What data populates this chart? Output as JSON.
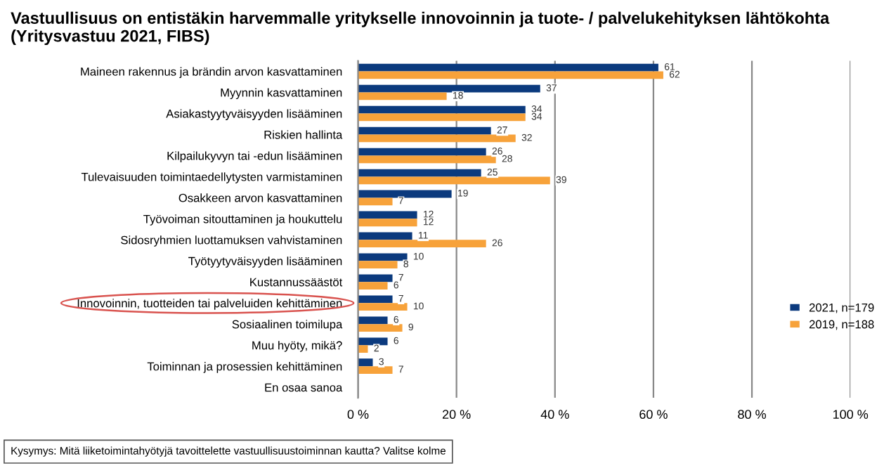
{
  "chart_data": {
    "type": "bar",
    "orientation": "horizontal",
    "title": "Vastuullisuus on entistäkin harvemmalle yritykselle innovoinnin ja tuote- / palvelukehityksen lähtökohta (Yritysvastuu 2021, FIBS)",
    "categories": [
      "Maineen rakennus ja brändin arvon kasvattaminen",
      "Myynnin kasvattaminen",
      "Asiakastyytyväisyyden lisääminen",
      "Riskien hallinta",
      "Kilpailukyvyn tai -edun lisääminen",
      "Tulevaisuuden toimintaedellytysten varmistaminen",
      "Osakkeen arvon kasvattaminen",
      "Työvoiman sitouttaminen ja houkuttelu",
      "Sidosryhmien luottamuksen vahvistaminen",
      "Työtyytyväisyyden lisääminen",
      "Kustannussäästöt",
      "Innovoinnin, tuotteiden tai palveluiden kehittäminen",
      "Sosiaalinen toimilupa",
      "Muu hyöty, mikä?",
      "Toiminnan ja prosessien kehittäminen",
      "En osaa sanoa"
    ],
    "series": [
      {
        "name": "2021, n=179",
        "color": "#0b3a7e",
        "values": [
          61,
          37,
          34,
          27,
          26,
          25,
          19,
          12,
          11,
          10,
          7,
          7,
          6,
          6,
          3,
          null
        ]
      },
      {
        "name": "2019, n=188",
        "color": "#f7a23a",
        "values": [
          62,
          18,
          34,
          32,
          28,
          39,
          7,
          12,
          26,
          8,
          6,
          10,
          9,
          2,
          7,
          null
        ]
      }
    ],
    "xlim": [
      0,
      100
    ],
    "xticks": [
      {
        "value": 0,
        "label": "0 %"
      },
      {
        "value": 20,
        "label": "20 %"
      },
      {
        "value": 40,
        "label": "40 %"
      },
      {
        "value": 60,
        "label": "60 %"
      },
      {
        "value": 80,
        "label": "80 %"
      },
      {
        "value": 100,
        "label": "100 %"
      }
    ],
    "grid": "x",
    "legend": "right",
    "data_labels": true,
    "annotations": [
      "Kysymys: Mitä liiketoimintahyötyjä tavoittelette vastuullisuustoiminnan kautta? Valitse kolme"
    ]
  }
}
